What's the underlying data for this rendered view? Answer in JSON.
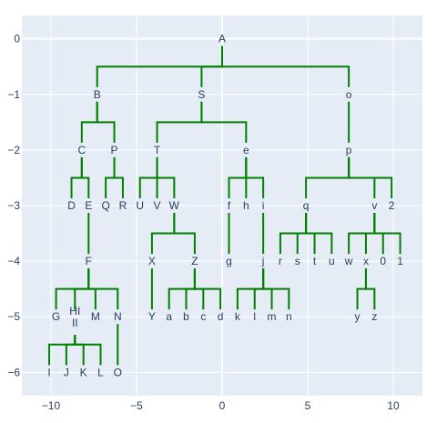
{
  "chart_data": {
    "type": "tree",
    "title": "",
    "xlabel": "",
    "ylabel": "",
    "xlim": [
      -11.7,
      11.7
    ],
    "ylim": [
      -6.42,
      0.42
    ],
    "grid": true,
    "legend": "none",
    "x_ticks": [
      {
        "value": -10,
        "label": "−10"
      },
      {
        "value": -5,
        "label": "−5"
      },
      {
        "value": 0,
        "label": "0"
      },
      {
        "value": 5,
        "label": "5"
      },
      {
        "value": 10,
        "label": "10"
      }
    ],
    "y_ticks": [
      {
        "value": 0,
        "label": "0"
      },
      {
        "value": -1,
        "label": "−1"
      },
      {
        "value": -2,
        "label": "−2"
      },
      {
        "value": -3,
        "label": "−3"
      },
      {
        "value": -4,
        "label": "−4"
      },
      {
        "value": -5,
        "label": "−5"
      },
      {
        "value": -6,
        "label": "−6"
      }
    ],
    "colors": {
      "plot_background": "#e5ecf6",
      "grid": "#ffffff",
      "edge": "#008000",
      "text": "#2a3f5f"
    },
    "nodes": [
      {
        "id": "A",
        "label": "A",
        "x": 0,
        "y": 0
      },
      {
        "id": "B",
        "label": "B",
        "x": -7.3,
        "y": -1
      },
      {
        "id": "S",
        "label": "S",
        "x": -1.2,
        "y": -1
      },
      {
        "id": "o",
        "label": "o",
        "x": 7.4,
        "y": -1
      },
      {
        "id": "C",
        "label": "C",
        "x": -8.2,
        "y": -2
      },
      {
        "id": "P",
        "label": "P",
        "x": -6.3,
        "y": -2
      },
      {
        "id": "T",
        "label": "T",
        "x": -3.8,
        "y": -2
      },
      {
        "id": "e",
        "label": "e",
        "x": 1.4,
        "y": -2
      },
      {
        "id": "p",
        "label": "p",
        "x": 7.4,
        "y": -2
      },
      {
        "id": "D",
        "label": "D",
        "x": -8.8,
        "y": -3
      },
      {
        "id": "E",
        "label": "E",
        "x": -7.8,
        "y": -3
      },
      {
        "id": "Q",
        "label": "Q",
        "x": -6.8,
        "y": -3
      },
      {
        "id": "R",
        "label": "R",
        "x": -5.8,
        "y": -3
      },
      {
        "id": "U",
        "label": "U",
        "x": -4.8,
        "y": -3
      },
      {
        "id": "V",
        "label": "V",
        "x": -3.8,
        "y": -3
      },
      {
        "id": "W",
        "label": "W",
        "x": -2.8,
        "y": -3
      },
      {
        "id": "f",
        "label": "f",
        "x": 0.4,
        "y": -3
      },
      {
        "id": "h",
        "label": "h",
        "x": 1.4,
        "y": -3
      },
      {
        "id": "i",
        "label": "i",
        "x": 2.4,
        "y": -3
      },
      {
        "id": "q",
        "label": "q",
        "x": 4.9,
        "y": -3
      },
      {
        "id": "v",
        "label": "v",
        "x": 8.9,
        "y": -3
      },
      {
        "id": "n2",
        "label": "2",
        "x": 9.9,
        "y": -3
      },
      {
        "id": "F",
        "label": "F",
        "x": -7.8,
        "y": -4
      },
      {
        "id": "X",
        "label": "X",
        "x": -4.1,
        "y": -4
      },
      {
        "id": "Z",
        "label": "Z",
        "x": -1.6,
        "y": -4
      },
      {
        "id": "g",
        "label": "g",
        "x": 0.4,
        "y": -4
      },
      {
        "id": "j",
        "label": "j",
        "x": 2.4,
        "y": -4
      },
      {
        "id": "r",
        "label": "r",
        "x": 3.4,
        "y": -4
      },
      {
        "id": "s",
        "label": "s",
        "x": 4.4,
        "y": -4
      },
      {
        "id": "t",
        "label": "t",
        "x": 5.4,
        "y": -4
      },
      {
        "id": "u",
        "label": "u",
        "x": 6.4,
        "y": -4
      },
      {
        "id": "w",
        "label": "w",
        "x": 7.4,
        "y": -4
      },
      {
        "id": "x",
        "label": "x",
        "x": 8.4,
        "y": -4
      },
      {
        "id": "n0",
        "label": "0",
        "x": 9.4,
        "y": -4
      },
      {
        "id": "n1",
        "label": "1",
        "x": 10.4,
        "y": -4
      },
      {
        "id": "G",
        "label": "G",
        "x": -9.7,
        "y": -5
      },
      {
        "id": "HIII",
        "label": "HI\nII",
        "x": -8.6,
        "y": -5
      },
      {
        "id": "M",
        "label": "M",
        "x": -7.4,
        "y": -5
      },
      {
        "id": "N",
        "label": "N",
        "x": -6.1,
        "y": -5
      },
      {
        "id": "Y",
        "label": "Y",
        "x": -4.1,
        "y": -5
      },
      {
        "id": "a",
        "label": "a",
        "x": -3.1,
        "y": -5
      },
      {
        "id": "b",
        "label": "b",
        "x": -2.1,
        "y": -5
      },
      {
        "id": "c",
        "label": "c",
        "x": -1.1,
        "y": -5
      },
      {
        "id": "d",
        "label": "d",
        "x": -0.1,
        "y": -5
      },
      {
        "id": "k",
        "label": "k",
        "x": 0.9,
        "y": -5
      },
      {
        "id": "l",
        "label": "l",
        "x": 1.9,
        "y": -5
      },
      {
        "id": "m",
        "label": "m",
        "x": 2.9,
        "y": -5
      },
      {
        "id": "nn",
        "label": "n",
        "x": 3.9,
        "y": -5
      },
      {
        "id": "y",
        "label": "y",
        "x": 7.9,
        "y": -5
      },
      {
        "id": "z",
        "label": "z",
        "x": 8.9,
        "y": -5
      },
      {
        "id": "I",
        "label": "I",
        "x": -10.1,
        "y": -6
      },
      {
        "id": "J",
        "label": "J",
        "x": -9.1,
        "y": -6
      },
      {
        "id": "K",
        "label": "K",
        "x": -8.1,
        "y": -6
      },
      {
        "id": "L",
        "label": "L",
        "x": -7.1,
        "y": -6
      },
      {
        "id": "O",
        "label": "O",
        "x": -6.1,
        "y": -6
      }
    ],
    "edges": [
      [
        "A",
        "B"
      ],
      [
        "A",
        "S"
      ],
      [
        "A",
        "o"
      ],
      [
        "B",
        "C"
      ],
      [
        "B",
        "P"
      ],
      [
        "S",
        "T"
      ],
      [
        "S",
        "e"
      ],
      [
        "o",
        "p"
      ],
      [
        "C",
        "D"
      ],
      [
        "C",
        "E"
      ],
      [
        "P",
        "Q"
      ],
      [
        "P",
        "R"
      ],
      [
        "T",
        "U"
      ],
      [
        "T",
        "V"
      ],
      [
        "T",
        "W"
      ],
      [
        "e",
        "f"
      ],
      [
        "e",
        "h"
      ],
      [
        "e",
        "i"
      ],
      [
        "p",
        "q"
      ],
      [
        "p",
        "v"
      ],
      [
        "p",
        "n2"
      ],
      [
        "E",
        "F"
      ],
      [
        "W",
        "X"
      ],
      [
        "W",
        "Z"
      ],
      [
        "f",
        "g"
      ],
      [
        "i",
        "j"
      ],
      [
        "q",
        "r"
      ],
      [
        "q",
        "s"
      ],
      [
        "q",
        "t"
      ],
      [
        "q",
        "u"
      ],
      [
        "v",
        "w"
      ],
      [
        "v",
        "x"
      ],
      [
        "v",
        "n0"
      ],
      [
        "v",
        "n1"
      ],
      [
        "F",
        "G"
      ],
      [
        "F",
        "HIII"
      ],
      [
        "F",
        "M"
      ],
      [
        "F",
        "N"
      ],
      [
        "X",
        "Y"
      ],
      [
        "Z",
        "a"
      ],
      [
        "Z",
        "b"
      ],
      [
        "Z",
        "c"
      ],
      [
        "Z",
        "d"
      ],
      [
        "j",
        "k"
      ],
      [
        "j",
        "l"
      ],
      [
        "j",
        "m"
      ],
      [
        "j",
        "nn"
      ],
      [
        "x",
        "y"
      ],
      [
        "x",
        "z"
      ],
      [
        "HIII",
        "I"
      ],
      [
        "HIII",
        "J"
      ],
      [
        "HIII",
        "K"
      ],
      [
        "HIII",
        "L"
      ],
      [
        "N",
        "O"
      ]
    ]
  }
}
